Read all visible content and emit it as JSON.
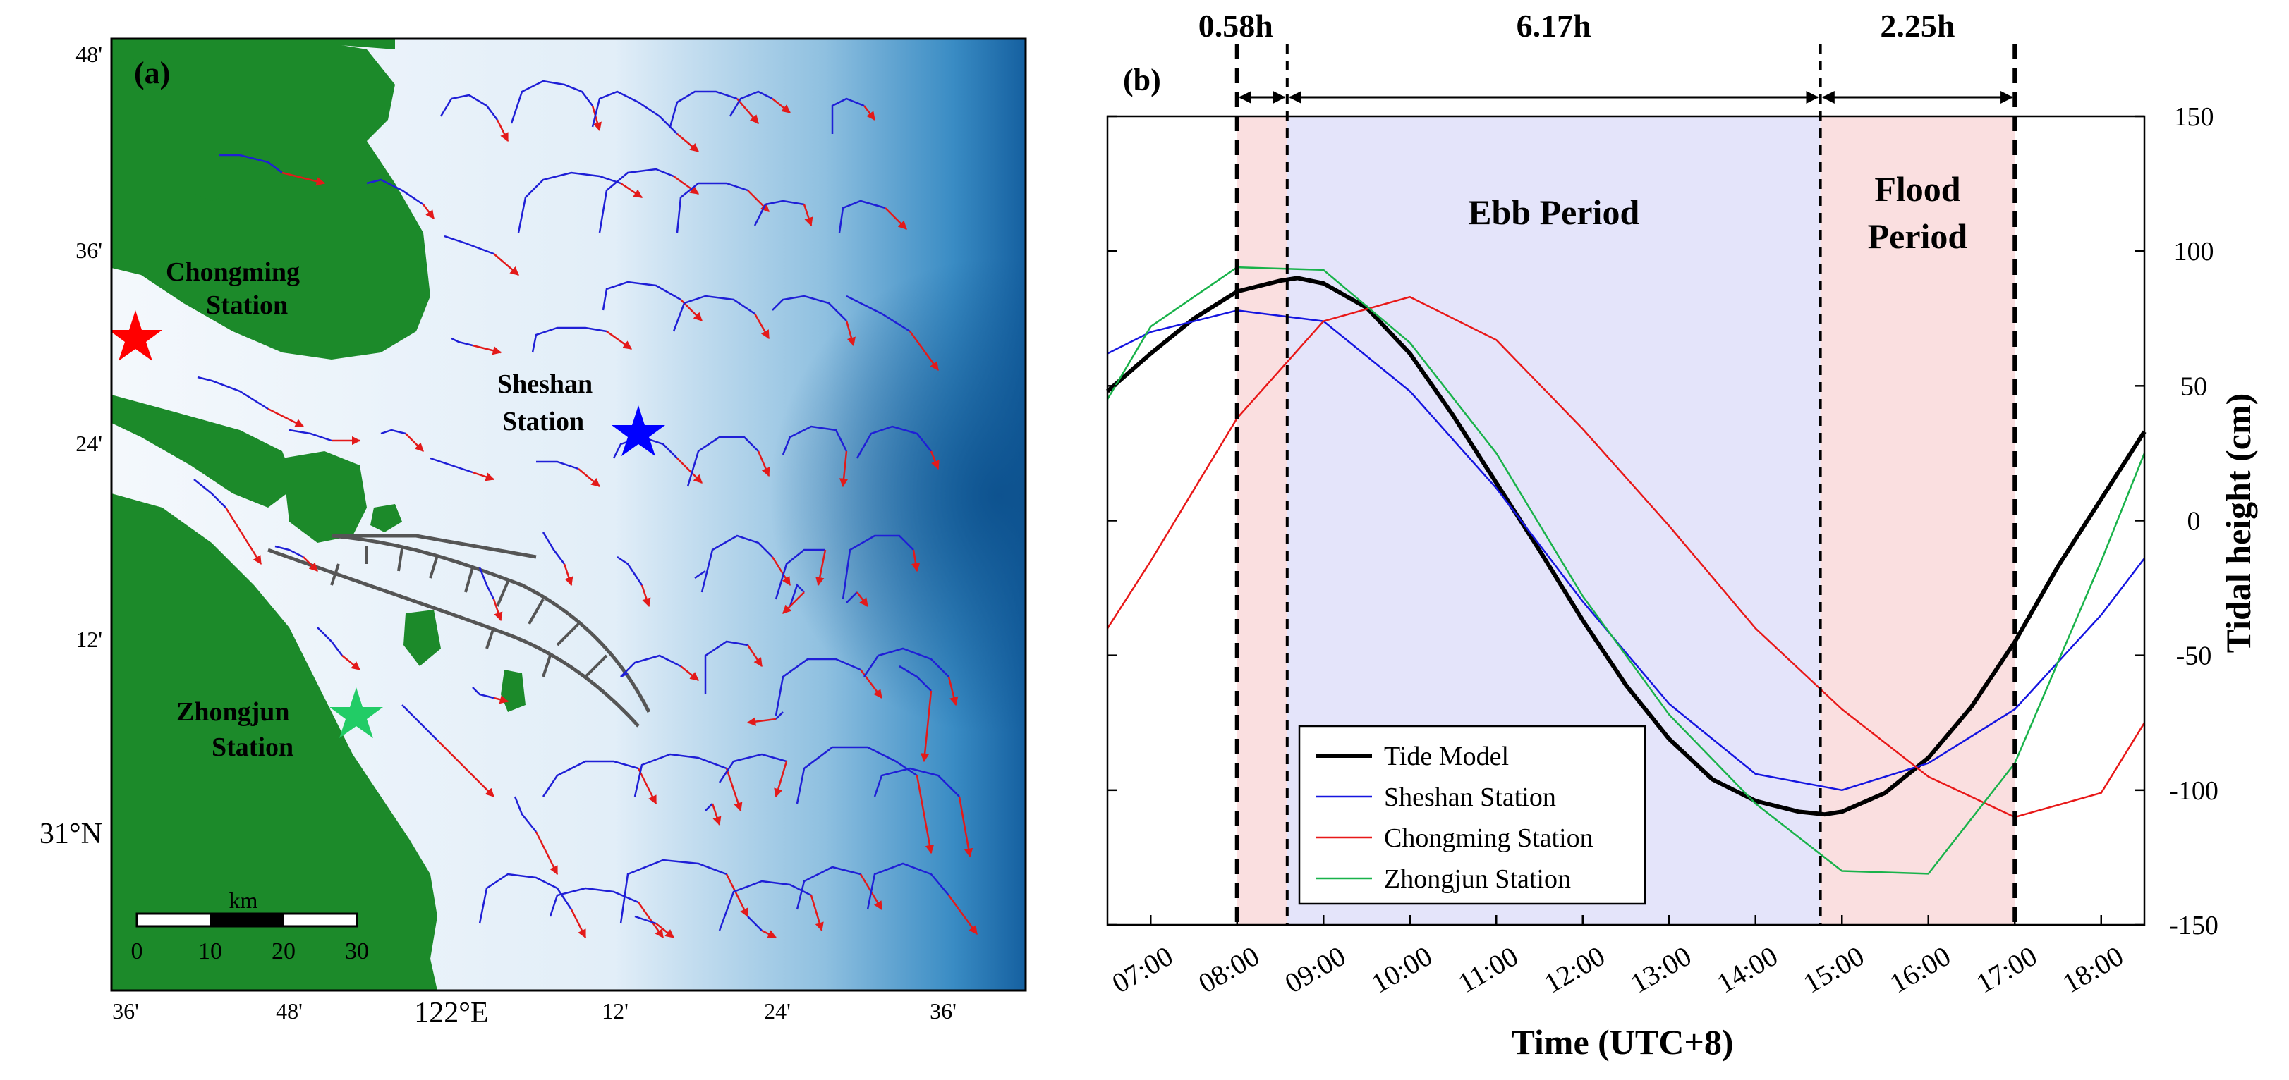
{
  "panel_a": {
    "label": "(a)",
    "stations": [
      {
        "name_line1": "Chongming",
        "name_line2": "Station",
        "color": "#ff0000"
      },
      {
        "name_line1": "Sheshan",
        "name_line2": "Station",
        "color": "#0000ff"
      },
      {
        "name_line1": "Zhongjun",
        "name_line2": "Station",
        "color": "#22cc66"
      }
    ],
    "lat_ticks": [
      "48'",
      "36'",
      "24'",
      "12'",
      "31°N"
    ],
    "lon_ticks": [
      "36'",
      "48'",
      "122°E",
      "12'",
      "24'",
      "36'"
    ],
    "scale": {
      "unit": "km",
      "labels": [
        "0",
        "10",
        "20",
        "30"
      ]
    },
    "colors": {
      "land": "#1c8a2a",
      "water_shallow": "#eef5fb",
      "water_deep": "#1a6aa8",
      "track": "#1f1fd6",
      "arrow": "#e31a1a",
      "jetty": "#555555"
    }
  },
  "chart_data": {
    "type": "line",
    "panel_label": "(b)",
    "xlabel": "Time (UTC+8)",
    "ylabel": "Tidal height (cm)",
    "x_ticks": [
      "07:00",
      "08:00",
      "09:00",
      "10:00",
      "11:00",
      "12:00",
      "13:00",
      "14:00",
      "15:00",
      "16:00",
      "17:00",
      "18:00"
    ],
    "xlim": [
      6.5,
      18.5
    ],
    "ylim": [
      -150,
      150
    ],
    "y_ticks": [
      150,
      100,
      50,
      0,
      -50,
      -100,
      -150
    ],
    "period_bounds": [
      8.0,
      8.58,
      14.75,
      17.0
    ],
    "intervals": [
      {
        "label": "0.58h",
        "start": 8.0,
        "end": 8.58
      },
      {
        "label": "6.17h",
        "start": 8.58,
        "end": 14.75
      },
      {
        "label": "2.25h",
        "start": 14.75,
        "end": 17.0
      }
    ],
    "periods": [
      {
        "line1": "",
        "line2": "",
        "start": 8.0,
        "end": 8.58,
        "color": "#fadfe0"
      },
      {
        "line1": "Ebb Period",
        "line2": "",
        "start": 8.58,
        "end": 14.75,
        "color": "#e4e4fa"
      },
      {
        "line1": "Flood",
        "line2": "Period",
        "start": 14.75,
        "end": 17.0,
        "color": "#fadfe0"
      }
    ],
    "legend_position": "bottom-center",
    "series": [
      {
        "name": "Tide Model",
        "color": "#000000",
        "width": 6,
        "x": [
          6.5,
          7.0,
          7.5,
          8.0,
          8.5,
          8.7,
          9.0,
          9.5,
          10.0,
          10.5,
          11.0,
          11.5,
          12.0,
          12.5,
          13.0,
          13.5,
          14.0,
          14.5,
          14.8,
          15.0,
          15.5,
          16.0,
          16.5,
          17.0,
          17.5,
          18.0,
          18.5
        ],
        "y": [
          48,
          62,
          75,
          85,
          89,
          90,
          88,
          79,
          62,
          39,
          14,
          -11,
          -37,
          -61,
          -81,
          -96,
          -104,
          -108,
          -109,
          -108,
          -101,
          -88,
          -69,
          -45,
          -17,
          8,
          33
        ]
      },
      {
        "name": "Sheshan Station",
        "color": "#1515e0",
        "width": 2.5,
        "x": [
          6.5,
          7.0,
          8.0,
          9.0,
          10.0,
          11.0,
          12.0,
          13.0,
          14.0,
          15.0,
          16.0,
          17.0,
          18.0,
          18.5
        ],
        "y": [
          62,
          70,
          78,
          74,
          48,
          12,
          -30,
          -68,
          -94,
          -100,
          -90,
          -70,
          -35,
          -14
        ]
      },
      {
        "name": "Chongming Station",
        "color": "#e81818",
        "width": 2.5,
        "x": [
          6.5,
          7.0,
          8.0,
          9.0,
          10.0,
          11.0,
          12.0,
          13.0,
          14.0,
          15.0,
          16.0,
          17.0,
          18.0,
          18.5
        ],
        "y": [
          -40,
          -15,
          38,
          74,
          83,
          67,
          34,
          -2,
          -40,
          -70,
          -95,
          -110,
          -101,
          -75
        ]
      },
      {
        "name": "Zhongjun Station",
        "color": "#19b24a",
        "width": 2.5,
        "x": [
          6.5,
          7.0,
          8.0,
          9.0,
          10.0,
          11.0,
          12.0,
          13.0,
          14.0,
          15.0,
          16.0,
          17.0,
          18.0,
          18.5
        ],
        "y": [
          45,
          72,
          94,
          93,
          66,
          25,
          -28,
          -72,
          -105,
          -130,
          -131,
          -90,
          -15,
          25
        ]
      }
    ]
  }
}
